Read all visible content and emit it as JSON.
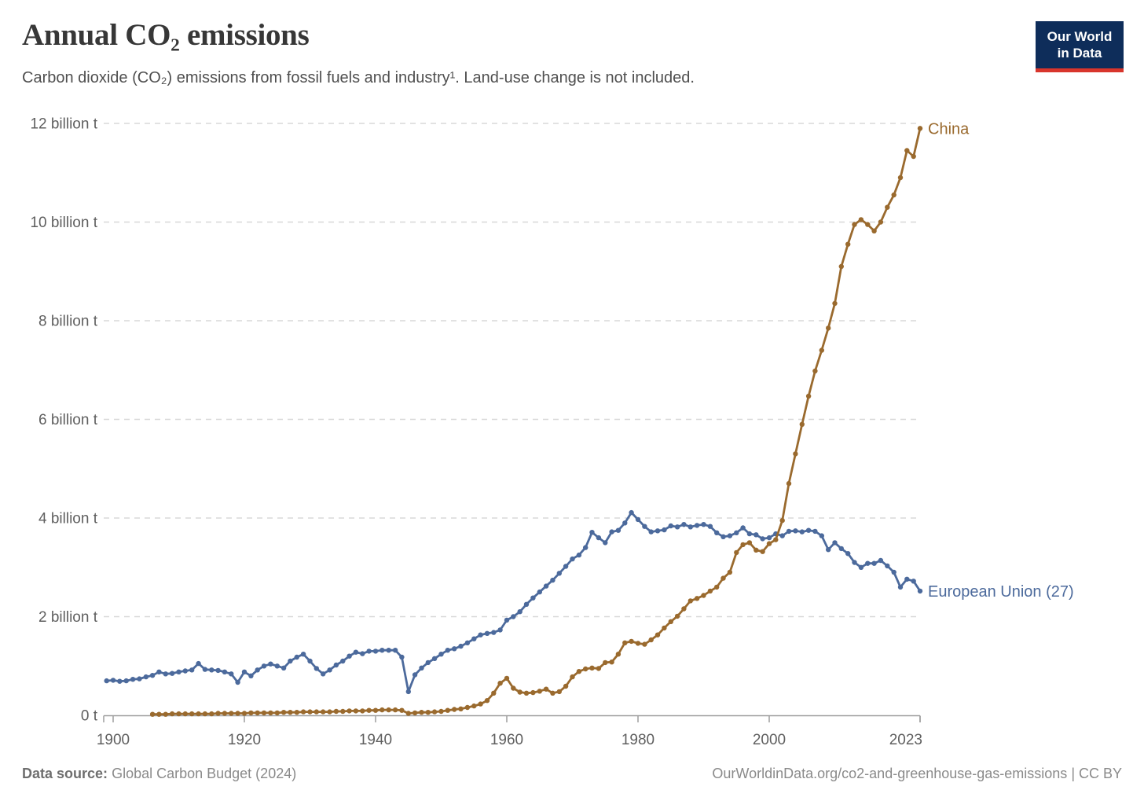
{
  "header": {
    "title": "Annual CO₂ emissions",
    "subtitle": "Carbon dioxide (CO₂) emissions from fossil fuels and industry¹. Land-use change is not included."
  },
  "logo": {
    "line1": "Our World",
    "line2": "in Data",
    "bg_color": "#0e2d5a",
    "accent_color": "#d8352c"
  },
  "chart_data": {
    "type": "line",
    "title": "Annual CO₂ emissions",
    "xlabel": "",
    "ylabel": "",
    "unit": "billion t",
    "ylim": [
      0,
      12
    ],
    "yticks": [
      0,
      2,
      4,
      6,
      8,
      10,
      12
    ],
    "ytick_labels": [
      "0 t",
      "2 billion t",
      "4 billion t",
      "6 billion t",
      "8 billion t",
      "10 billion t",
      "12 billion t"
    ],
    "xticks": [
      1900,
      1920,
      1940,
      1960,
      1980,
      2000,
      2023
    ],
    "xlim": [
      1899,
      2023
    ],
    "grid": "horizontal-dashed",
    "legend_position": "line-end-labels",
    "series": [
      {
        "name": "European Union (27)",
        "color": "#4c6a9c",
        "start_year": 1899,
        "values": [
          0.7,
          0.71,
          0.69,
          0.7,
          0.73,
          0.74,
          0.78,
          0.81,
          0.88,
          0.84,
          0.85,
          0.88,
          0.9,
          0.92,
          1.05,
          0.93,
          0.92,
          0.91,
          0.88,
          0.84,
          0.67,
          0.88,
          0.8,
          0.92,
          1.0,
          1.04,
          1.0,
          0.96,
          1.1,
          1.18,
          1.24,
          1.1,
          0.95,
          0.84,
          0.92,
          1.02,
          1.1,
          1.2,
          1.28,
          1.25,
          1.3,
          1.3,
          1.32,
          1.32,
          1.32,
          1.18,
          0.48,
          0.82,
          0.96,
          1.07,
          1.15,
          1.24,
          1.32,
          1.35,
          1.4,
          1.47,
          1.55,
          1.63,
          1.66,
          1.68,
          1.73,
          1.93,
          2.0,
          2.1,
          2.25,
          2.38,
          2.5,
          2.62,
          2.74,
          2.88,
          3.02,
          3.17,
          3.25,
          3.4,
          3.71,
          3.6,
          3.5,
          3.72,
          3.75,
          3.9,
          4.11,
          3.97,
          3.83,
          3.72,
          3.74,
          3.76,
          3.84,
          3.82,
          3.87,
          3.82,
          3.85,
          3.87,
          3.83,
          3.7,
          3.62,
          3.64,
          3.7,
          3.8,
          3.68,
          3.66,
          3.58,
          3.6,
          3.68,
          3.64,
          3.73,
          3.74,
          3.72,
          3.75,
          3.73,
          3.64,
          3.36,
          3.5,
          3.38,
          3.28,
          3.1,
          3.0,
          3.08,
          3.08,
          3.14,
          3.03,
          2.9,
          2.6,
          2.76,
          2.72,
          2.52
        ]
      },
      {
        "name": "China",
        "color": "#9a6a2e",
        "start_year": 1906,
        "values": [
          0.02,
          0.02,
          0.02,
          0.03,
          0.03,
          0.03,
          0.03,
          0.03,
          0.03,
          0.03,
          0.04,
          0.04,
          0.04,
          0.04,
          0.04,
          0.05,
          0.05,
          0.05,
          0.05,
          0.05,
          0.06,
          0.06,
          0.06,
          0.07,
          0.07,
          0.07,
          0.07,
          0.07,
          0.08,
          0.08,
          0.09,
          0.09,
          0.09,
          0.1,
          0.1,
          0.11,
          0.11,
          0.11,
          0.1,
          0.04,
          0.05,
          0.06,
          0.06,
          0.07,
          0.08,
          0.1,
          0.12,
          0.13,
          0.16,
          0.19,
          0.23,
          0.3,
          0.45,
          0.65,
          0.75,
          0.55,
          0.47,
          0.45,
          0.46,
          0.49,
          0.53,
          0.45,
          0.48,
          0.59,
          0.78,
          0.89,
          0.94,
          0.96,
          0.95,
          1.07,
          1.08,
          1.24,
          1.47,
          1.5,
          1.46,
          1.44,
          1.53,
          1.63,
          1.77,
          1.9,
          2.01,
          2.16,
          2.32,
          2.37,
          2.43,
          2.52,
          2.6,
          2.78,
          2.9,
          3.3,
          3.46,
          3.5,
          3.35,
          3.32,
          3.48,
          3.56,
          3.95,
          4.7,
          5.3,
          5.9,
          6.47,
          6.98,
          7.4,
          7.85,
          8.35,
          9.1,
          9.55,
          9.95,
          10.05,
          9.95,
          9.82,
          10.0,
          10.3,
          10.55,
          10.9,
          11.45,
          11.33,
          11.9
        ]
      }
    ]
  },
  "footer": {
    "source_label": "Data source:",
    "source_value": "Global Carbon Budget (2024)",
    "right_text": "OurWorldinData.org/co2-and-greenhouse-gas-emissions | CC BY"
  }
}
